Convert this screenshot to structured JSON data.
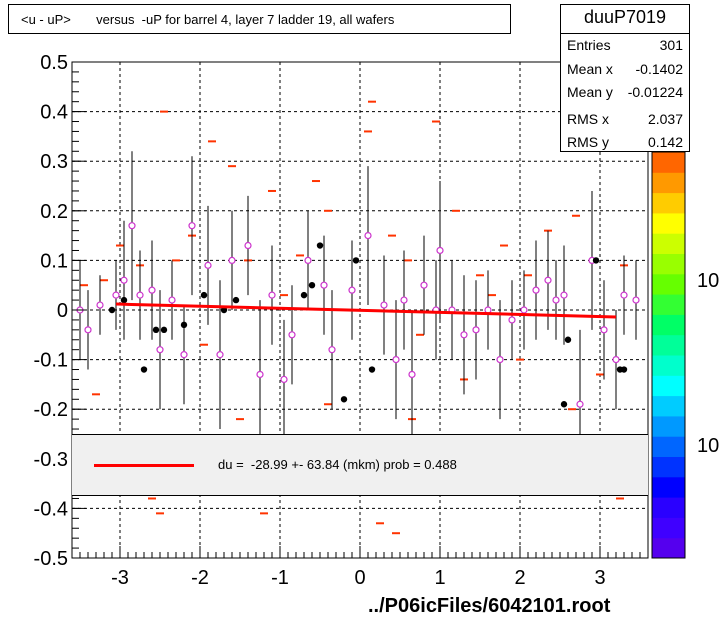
{
  "title": "<u - uP>       versus  -uP for barrel 4, layer 7 ladder 19, all wafers",
  "stats": {
    "name": "duuP7019",
    "rows": [
      {
        "label": "Entries",
        "value": "301"
      },
      {
        "label": "Mean x",
        "value": "-0.1402"
      },
      {
        "label": "Mean y",
        "value": "-0.01224"
      },
      {
        "label": "RMS x",
        "value": "2.037"
      },
      {
        "label": "RMS y",
        "value": "0.142"
      }
    ]
  },
  "fit_text": "du =  -28.99 +- 63.84 (mkm) prob = 0.488",
  "footer": "../P06icFiles/6042101.root",
  "palette_labels": [
    "10",
    "10"
  ],
  "colors": {
    "axis": "#000000",
    "fit": "#ff0000",
    "dash": "#ff3300",
    "profile_marker": "#cc33cc",
    "point": "#000000"
  },
  "chart_data": {
    "type": "scatter",
    "title": "<u - uP>       versus  -uP for barrel 4, layer 7 ladder 19, all wafers",
    "xlabel": "",
    "ylabel": "",
    "xlim": [
      -3.6,
      3.6
    ],
    "ylim": [
      -0.5,
      0.5
    ],
    "x_ticks": [
      -3,
      -2,
      -1,
      0,
      1,
      2,
      3
    ],
    "x_tick_labels": [
      "-3",
      "-2",
      "-1",
      "0",
      "1",
      "2",
      "3"
    ],
    "y_ticks": [
      -0.5,
      -0.4,
      -0.3,
      -0.2,
      -0.1,
      0,
      0.1,
      0.2,
      0.3,
      0.4,
      0.5
    ],
    "y_tick_labels": [
      "-0.5",
      "-0.4",
      "-0.3",
      "-0.2",
      "-0.1",
      "0",
      "0.1",
      "0.2",
      "0.3",
      "0.4",
      "0.5"
    ],
    "grid": true,
    "fit_line": {
      "x": [
        -3.05,
        3.2
      ],
      "y": [
        0.012,
        -0.014
      ]
    },
    "profile_points": [
      {
        "x": -3.5,
        "y": 0.0,
        "err": 0.1
      },
      {
        "x": -3.4,
        "y": -0.04,
        "err": 0.08
      },
      {
        "x": -3.25,
        "y": 0.01,
        "err": 0.06
      },
      {
        "x": -3.05,
        "y": 0.03,
        "err": 0.07
      },
      {
        "x": -2.95,
        "y": 0.06,
        "err": 0.12
      },
      {
        "x": -2.85,
        "y": 0.17,
        "err": 0.15
      },
      {
        "x": -2.75,
        "y": 0.03,
        "err": 0.09
      },
      {
        "x": -2.6,
        "y": 0.04,
        "err": 0.1
      },
      {
        "x": -2.5,
        "y": -0.08,
        "err": 0.12
      },
      {
        "x": -2.35,
        "y": 0.02,
        "err": 0.08
      },
      {
        "x": -2.2,
        "y": -0.09,
        "err": 0.1
      },
      {
        "x": -2.1,
        "y": 0.17,
        "err": 0.14
      },
      {
        "x": -1.9,
        "y": 0.09,
        "err": 0.12
      },
      {
        "x": -1.75,
        "y": -0.09,
        "err": 0.15
      },
      {
        "x": -1.6,
        "y": 0.1,
        "err": 0.1
      },
      {
        "x": -1.4,
        "y": 0.13,
        "err": 0.1
      },
      {
        "x": -1.25,
        "y": -0.13,
        "err": 0.15
      },
      {
        "x": -1.1,
        "y": 0.03,
        "err": 0.1
      },
      {
        "x": -0.95,
        "y": -0.14,
        "err": 0.12
      },
      {
        "x": -0.85,
        "y": -0.05,
        "err": 0.1
      },
      {
        "x": -0.65,
        "y": 0.1,
        "err": 0.1
      },
      {
        "x": -0.45,
        "y": 0.05,
        "err": 0.1
      },
      {
        "x": -0.35,
        "y": -0.08,
        "err": 0.12
      },
      {
        "x": -0.1,
        "y": 0.04,
        "err": 0.1
      },
      {
        "x": 0.1,
        "y": 0.15,
        "err": 0.14
      },
      {
        "x": 0.3,
        "y": 0.01,
        "err": 0.1
      },
      {
        "x": 0.45,
        "y": -0.1,
        "err": 0.12
      },
      {
        "x": 0.55,
        "y": 0.02,
        "err": 0.1
      },
      {
        "x": 0.65,
        "y": -0.13,
        "err": 0.13
      },
      {
        "x": 0.8,
        "y": 0.05,
        "err": 0.1
      },
      {
        "x": 0.95,
        "y": 0.0,
        "err": 0.1
      },
      {
        "x": 1.0,
        "y": 0.12,
        "err": 0.14
      },
      {
        "x": 1.15,
        "y": 0.0,
        "err": 0.1
      },
      {
        "x": 1.3,
        "y": -0.05,
        "err": 0.12
      },
      {
        "x": 1.45,
        "y": -0.04,
        "err": 0.1
      },
      {
        "x": 1.6,
        "y": 0.0,
        "err": 0.08
      },
      {
        "x": 1.75,
        "y": -0.1,
        "err": 0.12
      },
      {
        "x": 1.9,
        "y": -0.02,
        "err": 0.08
      },
      {
        "x": 2.05,
        "y": 0.0,
        "err": 0.08
      },
      {
        "x": 2.2,
        "y": 0.04,
        "err": 0.1
      },
      {
        "x": 2.35,
        "y": 0.06,
        "err": 0.1
      },
      {
        "x": 2.45,
        "y": 0.02,
        "err": 0.08
      },
      {
        "x": 2.55,
        "y": 0.03,
        "err": 0.1
      },
      {
        "x": 2.75,
        "y": -0.19,
        "err": 0.15
      },
      {
        "x": 2.9,
        "y": 0.1,
        "err": 0.14
      },
      {
        "x": 3.05,
        "y": -0.04,
        "err": 0.1
      },
      {
        "x": 3.2,
        "y": -0.1,
        "err": 0.1
      },
      {
        "x": 3.3,
        "y": 0.03,
        "err": 0.08
      },
      {
        "x": 3.45,
        "y": 0.02,
        "err": 0.08
      }
    ],
    "black_points": [
      {
        "x": -3.1,
        "y": 0.0
      },
      {
        "x": -2.95,
        "y": 0.02
      },
      {
        "x": -2.7,
        "y": -0.12
      },
      {
        "x": -2.55,
        "y": -0.04
      },
      {
        "x": -2.45,
        "y": -0.04
      },
      {
        "x": -2.2,
        "y": -0.03
      },
      {
        "x": -1.95,
        "y": 0.03
      },
      {
        "x": -1.7,
        "y": 0.0
      },
      {
        "x": -1.55,
        "y": 0.02
      },
      {
        "x": -0.7,
        "y": 0.03
      },
      {
        "x": -0.6,
        "y": 0.05
      },
      {
        "x": -0.5,
        "y": 0.13
      },
      {
        "x": -0.2,
        "y": -0.18
      },
      {
        "x": -0.05,
        "y": 0.1
      },
      {
        "x": 0.15,
        "y": -0.12
      },
      {
        "x": 2.55,
        "y": -0.19
      },
      {
        "x": 2.6,
        "y": -0.06
      },
      {
        "x": 2.95,
        "y": 0.1
      },
      {
        "x": 3.25,
        "y": -0.12
      },
      {
        "x": 3.3,
        "y": -0.12
      }
    ],
    "dashes": [
      {
        "x": -3.45,
        "y": 0.05
      },
      {
        "x": -3.2,
        "y": 0.06
      },
      {
        "x": -3.0,
        "y": 0.13
      },
      {
        "x": -2.75,
        "y": 0.09
      },
      {
        "x": -2.45,
        "y": 0.4
      },
      {
        "x": -2.3,
        "y": 0.1
      },
      {
        "x": -2.1,
        "y": 0.15
      },
      {
        "x": -1.85,
        "y": 0.34
      },
      {
        "x": -1.6,
        "y": 0.29
      },
      {
        "x": -1.4,
        "y": 0.1
      },
      {
        "x": -1.1,
        "y": 0.24
      },
      {
        "x": -0.75,
        "y": 0.11
      },
      {
        "x": -0.55,
        "y": 0.26
      },
      {
        "x": -0.4,
        "y": 0.2
      },
      {
        "x": 0.1,
        "y": 0.36
      },
      {
        "x": 0.15,
        "y": 0.42
      },
      {
        "x": 0.4,
        "y": 0.15
      },
      {
        "x": 0.6,
        "y": 0.1
      },
      {
        "x": 0.95,
        "y": 0.38
      },
      {
        "x": 1.2,
        "y": 0.2
      },
      {
        "x": 1.5,
        "y": 0.07
      },
      {
        "x": 1.8,
        "y": 0.13
      },
      {
        "x": 2.1,
        "y": 0.07
      },
      {
        "x": 2.35,
        "y": 0.16
      },
      {
        "x": 2.7,
        "y": 0.19
      },
      {
        "x": 3.0,
        "y": -0.13
      },
      {
        "x": 3.3,
        "y": 0.09
      },
      {
        "x": -2.6,
        "y": -0.38
      },
      {
        "x": -2.5,
        "y": -0.41
      },
      {
        "x": -1.2,
        "y": -0.41
      },
      {
        "x": 0.25,
        "y": -0.43
      },
      {
        "x": 0.45,
        "y": -0.45
      },
      {
        "x": 3.25,
        "y": -0.38
      },
      {
        "x": -3.3,
        "y": -0.17
      },
      {
        "x": -1.5,
        "y": -0.22
      },
      {
        "x": -0.4,
        "y": -0.19
      },
      {
        "x": 0.65,
        "y": -0.22
      },
      {
        "x": 1.3,
        "y": -0.14
      },
      {
        "x": 2.0,
        "y": -0.1
      },
      {
        "x": 2.65,
        "y": -0.2
      },
      {
        "x": -1.95,
        "y": -0.07
      },
      {
        "x": -0.95,
        "y": 0.03
      },
      {
        "x": 0.75,
        "y": -0.05
      },
      {
        "x": 1.65,
        "y": 0.03
      }
    ]
  }
}
